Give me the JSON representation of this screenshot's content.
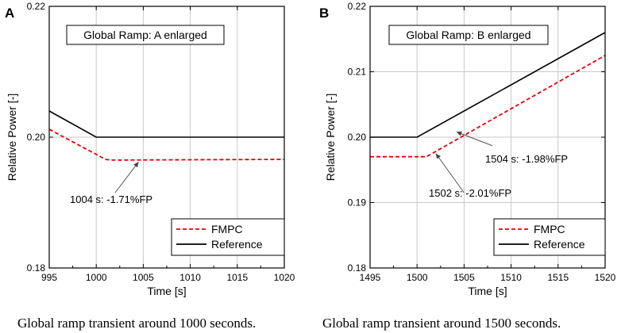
{
  "chart_data": [
    {
      "type": "line",
      "panel_letter": "A",
      "title": "Global Ramp: A enlarged",
      "xlabel": "Time [s]",
      "ylabel": "Relative Power [-]",
      "xlim": [
        995,
        1020
      ],
      "ylim": [
        0.18,
        0.22
      ],
      "xticks": [
        "995",
        "1000",
        "1005",
        "1010",
        "1015",
        "1020"
      ],
      "yticks": [
        "0.18",
        "0.20",
        "0.22"
      ],
      "grid": true,
      "legend_position": "bottom-right",
      "series": [
        {
          "name": "FMPC",
          "color": "#e8000b",
          "dash": true,
          "x": [
            995,
            1001,
            1001.5,
            1020
          ],
          "y": [
            0.2012,
            0.1966,
            0.1965,
            0.1966
          ]
        },
        {
          "name": "Reference",
          "color": "#000000",
          "dash": false,
          "x": [
            995,
            1000,
            1020
          ],
          "y": [
            0.204,
            0.2,
            0.2
          ]
        }
      ],
      "annotations": [
        {
          "text": "1004 s: -1.71%FP",
          "point": [
            1004.5,
            0.1962
          ],
          "text_at": [
            1002,
            0.1915
          ]
        }
      ],
      "caption": "Global ramp transient around 1000 seconds."
    },
    {
      "type": "line",
      "panel_letter": "B",
      "title": "Global Ramp: B enlarged",
      "xlabel": "Time [s]",
      "ylabel": "Relative Power [-]",
      "xlim": [
        1495,
        1520
      ],
      "ylim": [
        0.18,
        0.22
      ],
      "xticks": [
        "1495",
        "1500",
        "1505",
        "1510",
        "1515",
        "1520"
      ],
      "yticks": [
        "0.18",
        "0.19",
        "0.20",
        "0.21",
        "0.22"
      ],
      "grid": true,
      "legend_position": "bottom-right",
      "series": [
        {
          "name": "FMPC",
          "color": "#e8000b",
          "dash": true,
          "x": [
            1495,
            1501,
            1520
          ],
          "y": [
            0.197,
            0.197,
            0.2125
          ]
        },
        {
          "name": "Reference",
          "color": "#000000",
          "dash": false,
          "x": [
            1495,
            1500,
            1520
          ],
          "y": [
            0.2,
            0.2,
            0.216
          ]
        }
      ],
      "annotations": [
        {
          "text": "1504 s: -1.98%FP",
          "point": [
            1504.2,
            0.2008
          ],
          "text_at": [
            1508,
            0.1987
          ]
        },
        {
          "text": "1502 s: -2.01%FP",
          "point": [
            1502,
            0.1975
          ],
          "text_at": [
            1505,
            0.1915
          ]
        }
      ],
      "caption": "Global ramp transient around 1500 seconds."
    }
  ]
}
